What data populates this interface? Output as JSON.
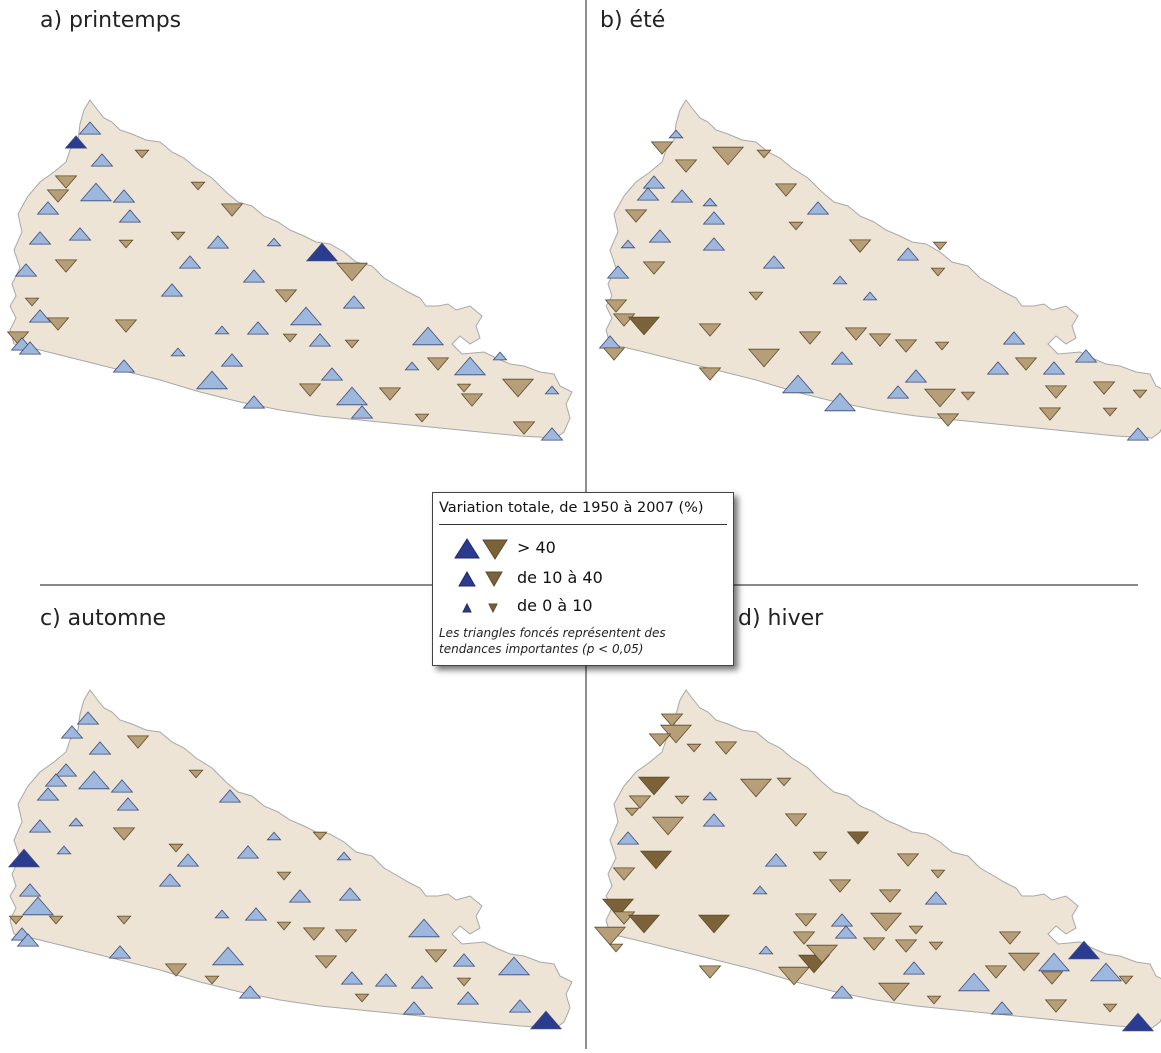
{
  "panels": [
    {
      "key": "a",
      "label": "a) printemps"
    },
    {
      "key": "b",
      "label": "b) été"
    },
    {
      "key": "c",
      "label": "c) automne"
    },
    {
      "key": "d",
      "label": "d) hiver"
    }
  ],
  "legend": {
    "title": "Variation totale, de 1950 à 2007 (%)",
    "classes": [
      {
        "label": "> 40"
      },
      {
        "label": "de 10 à 40"
      },
      {
        "label": "de 0 à 10"
      }
    ],
    "note": "Les triangles foncés représentent des tendances importantes (p < 0,05)"
  },
  "colors": {
    "increase": "#9db8dc",
    "increase_significant": "#2b3b8f",
    "decrease": "#b69f78",
    "decrease_significant": "#7c6238",
    "land": "#ede4d5",
    "land_stroke": "#a8a8a8",
    "marker_stroke": "#3c4a7a",
    "marker_stroke_brown": "#5e4b2b"
  }
}
